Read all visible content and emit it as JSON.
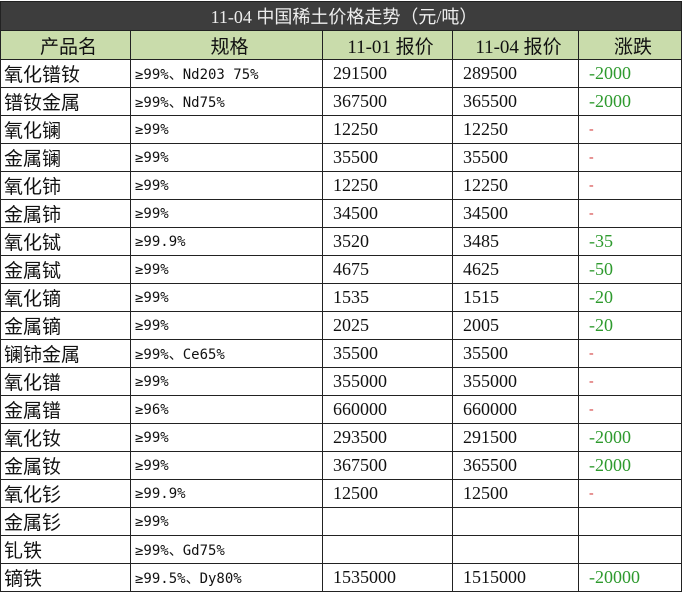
{
  "title": "11-04 中国稀土价格走势（元/吨）",
  "headers": [
    "产品名",
    "规格",
    "11-01 报价",
    "11-04 报价",
    "涨跌"
  ],
  "colors": {
    "title_bg": "#3d3d3d",
    "header_bg": "#c9dcab",
    "down": "#2e9a2e",
    "flat": "#d03030"
  },
  "rows": [
    {
      "name": "氧化镨钕",
      "spec": "≥99%、Nd203 75%",
      "p1": "291500",
      "p2": "289500",
      "chg": "-2000",
      "type": "down"
    },
    {
      "name": "镨钕金属",
      "spec": "≥99%、Nd75%",
      "p1": "367500",
      "p2": "365500",
      "chg": "-2000",
      "type": "down"
    },
    {
      "name": "氧化镧",
      "spec": "≥99%",
      "p1": "12250",
      "p2": "12250",
      "chg": "-",
      "type": "flat"
    },
    {
      "name": "金属镧",
      "spec": "≥99%",
      "p1": "35500",
      "p2": "35500",
      "chg": "-",
      "type": "flat"
    },
    {
      "name": "氧化铈",
      "spec": "≥99%",
      "p1": "12250",
      "p2": "12250",
      "chg": "-",
      "type": "flat"
    },
    {
      "name": "金属铈",
      "spec": "≥99%",
      "p1": "34500",
      "p2": "34500",
      "chg": "-",
      "type": "flat"
    },
    {
      "name": "氧化铽",
      "spec": "≥99.9%",
      "p1": "3520",
      "p2": "3485",
      "chg": "-35",
      "type": "down"
    },
    {
      "name": "金属铽",
      "spec": "≥99%",
      "p1": "4675",
      "p2": "4625",
      "chg": "-50",
      "type": "down"
    },
    {
      "name": "氧化镝",
      "spec": "≥99%",
      "p1": "1535",
      "p2": "1515",
      "chg": "-20",
      "type": "down"
    },
    {
      "name": "金属镝",
      "spec": "≥99%",
      "p1": "2025",
      "p2": "2005",
      "chg": "-20",
      "type": "down"
    },
    {
      "name": "镧铈金属",
      "spec": "≥99%、Ce65%",
      "p1": "35500",
      "p2": "35500",
      "chg": "-",
      "type": "flat"
    },
    {
      "name": "氧化镨",
      "spec": "≥99%",
      "p1": "355000",
      "p2": "355000",
      "chg": "-",
      "type": "flat"
    },
    {
      "name": "金属镨",
      "spec": "≥96%",
      "p1": "660000",
      "p2": "660000",
      "chg": "-",
      "type": "flat"
    },
    {
      "name": "氧化钕",
      "spec": "≥99%",
      "p1": "293500",
      "p2": "291500",
      "chg": "-2000",
      "type": "down"
    },
    {
      "name": "金属钕",
      "spec": "≥99%",
      "p1": "367500",
      "p2": "365500",
      "chg": "-2000",
      "type": "down"
    },
    {
      "name": "氧化钐",
      "spec": "≥99.9%",
      "p1": "12500",
      "p2": "12500",
      "chg": "-",
      "type": "flat"
    },
    {
      "name": "金属钐",
      "spec": "≥99%",
      "p1": "",
      "p2": "",
      "chg": "",
      "type": "flat"
    },
    {
      "name": "钆铁",
      "spec": "≥99%、Gd75%",
      "p1": "",
      "p2": "",
      "chg": "",
      "type": "flat"
    },
    {
      "name": "镝铁",
      "spec": "≥99.5%、Dy80%",
      "p1": "1535000",
      "p2": "1515000",
      "chg": "-20000",
      "type": "down"
    }
  ]
}
